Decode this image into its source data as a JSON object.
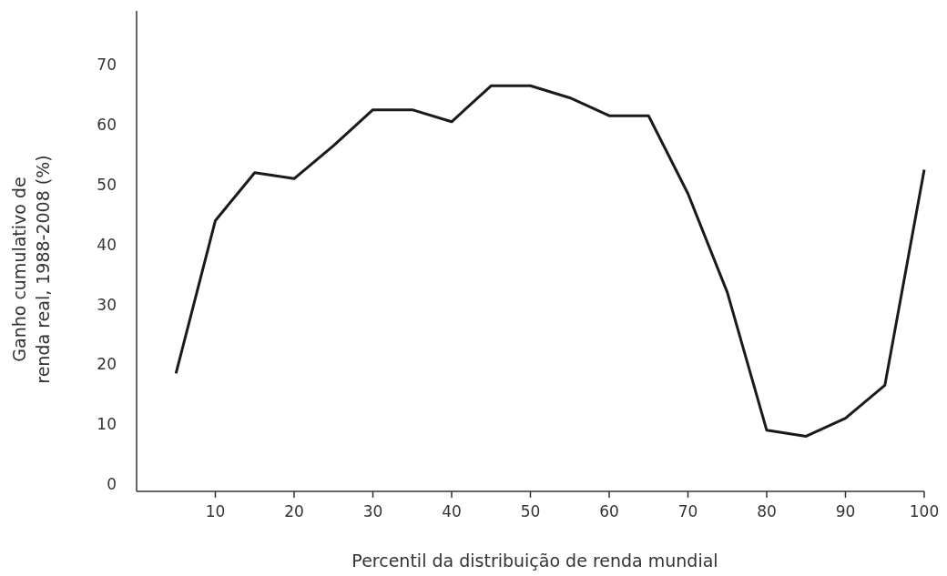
{
  "chart_data": {
    "type": "line",
    "xlabel": "Percentil da distribuição de renda mundial",
    "ylabel": "Ganho cumulativo de\nrenda real, 1988-2008 (%)",
    "x": [
      5,
      10,
      15,
      20,
      25,
      30,
      35,
      40,
      45,
      50,
      55,
      60,
      65,
      70,
      75,
      80,
      85,
      90,
      95,
      100
    ],
    "series": [
      {
        "color": "#1a1a1a",
        "values": [
          18.5,
          44,
          52,
          51,
          56.5,
          62.5,
          62.5,
          60.5,
          66.5,
          66.5,
          64.5,
          61.5,
          61.5,
          48.5,
          32,
          9,
          8,
          11,
          16.5,
          52.5
        ]
      }
    ],
    "xlim": [
      0,
      100
    ],
    "ylim": [
      -1.2,
      79
    ],
    "xticks": [
      10,
      20,
      30,
      40,
      50,
      60,
      70,
      80,
      90,
      100
    ],
    "yticks": [
      0,
      10,
      20,
      30,
      40,
      50,
      60,
      70
    ],
    "marker": "none",
    "line_style": "solid"
  }
}
